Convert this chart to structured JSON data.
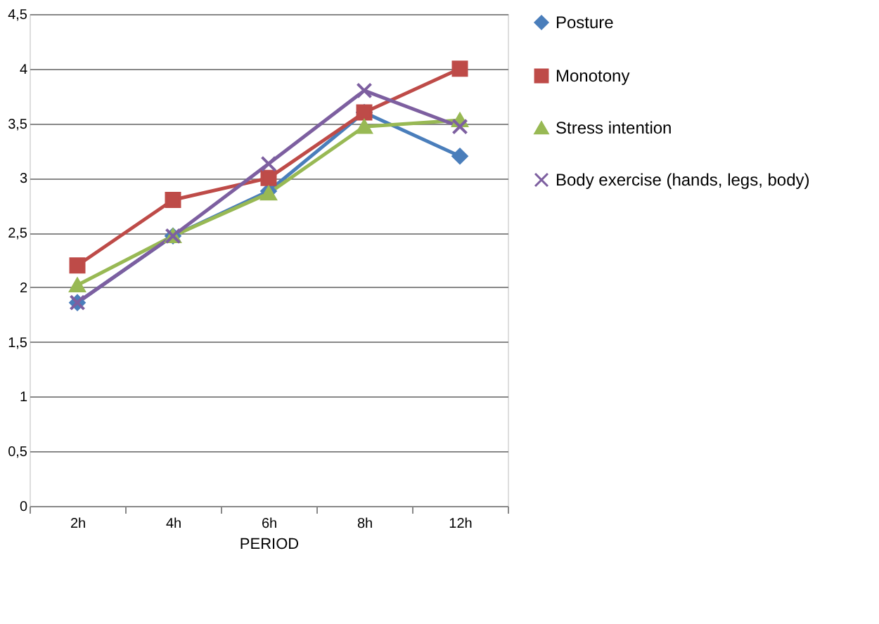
{
  "chart_data": {
    "type": "line",
    "xlabel": "PERIOD",
    "categories": [
      "2h",
      "4h",
      "6h",
      "8h",
      "12h"
    ],
    "ylim": [
      0,
      4.5
    ],
    "yticks": [
      0,
      {
        "value": 0.5,
        "label": "0,5"
      },
      1,
      {
        "value": 1.5,
        "label": "1,5"
      },
      2,
      {
        "value": 2.5,
        "label": "2,5"
      },
      3,
      {
        "value": 3.5,
        "label": "3,5"
      },
      4,
      {
        "value": 4.5,
        "label": "4,5"
      }
    ],
    "grid": "y",
    "legend": "right",
    "line_style": "solid",
    "series": [
      {
        "name": "Posture",
        "color": "#4a7ebb",
        "marker": "diamond",
        "values": [
          1.86,
          2.47,
          2.88,
          3.6,
          3.2
        ]
      },
      {
        "name": "Monotony",
        "color": "#be4b48",
        "marker": "square",
        "values": [
          2.2,
          2.8,
          3.0,
          3.6,
          4.0
        ]
      },
      {
        "name": "Stress intention",
        "color": "#98b954",
        "marker": "triangle",
        "values": [
          2.02,
          2.47,
          2.86,
          3.47,
          3.53
        ]
      },
      {
        "name": "Body exercise (hands, legs, body)",
        "color": "#7d5fa0",
        "marker": "cross",
        "values": [
          1.86,
          2.47,
          3.13,
          3.8,
          3.47
        ]
      }
    ]
  }
}
